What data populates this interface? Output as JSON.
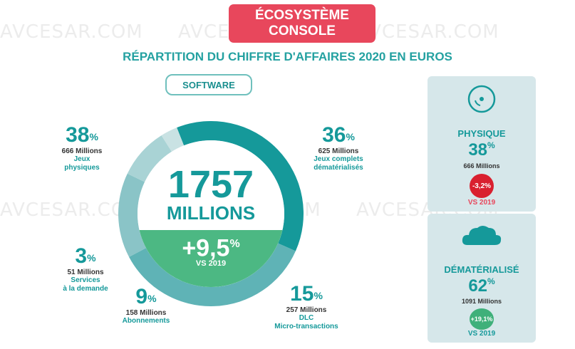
{
  "watermark": "AVCESAR.COM",
  "header": {
    "title_line1": "ÉCOSYSTÈME",
    "title_line2": "CONSOLE"
  },
  "subtitle": "RÉPARTITION DU CHIFFRE D'AFFAIRES 2020 EN EUROS",
  "tab": "SOFTWARE",
  "center": {
    "total": "1757",
    "unit": "MILLIONS",
    "growth": "+9,5",
    "growth_unit": "%",
    "vs": "VS 2019"
  },
  "chart_data": {
    "type": "pie",
    "title": "",
    "total": 1757,
    "unit": "Millions",
    "slices": [
      {
        "label": "Jeux physiques",
        "percent": 38,
        "value": 666
      },
      {
        "label": "Jeux complets dématérialisés",
        "percent": 36,
        "value": 625
      },
      {
        "label": "DLC Micro-transactions",
        "percent": 15,
        "value": 257
      },
      {
        "label": "Abonnements",
        "percent": 9,
        "value": 158
      },
      {
        "label": "Services à la demande",
        "percent": 3,
        "value": 51
      }
    ],
    "colors": [
      "#15999a",
      "#5fb3b6",
      "#8ac4c7",
      "#a9d3d5",
      "#c9e2e3"
    ]
  },
  "stats": {
    "jeux_physiques": {
      "pct": "38",
      "sym": "%",
      "millions": "666 Millions",
      "line1": "Jeux",
      "line2": "physiques"
    },
    "demat": {
      "pct": "36",
      "sym": "%",
      "millions": "625 Millions",
      "line1": "Jeux complets",
      "line2": "dématérialisés"
    },
    "services": {
      "pct": "3",
      "sym": "%",
      "millions": "51 Millions",
      "line1": "Services",
      "line2": "à la demande"
    },
    "abonnements": {
      "pct": "9",
      "sym": "%",
      "millions": "158 Millions",
      "line1": "Abonnements"
    },
    "dlc": {
      "pct": "15",
      "sym": "%",
      "millions": "257 Millions",
      "line1": "DLC",
      "line2": "Micro-transactions"
    }
  },
  "panel_physique": {
    "title": "PHYSIQUE",
    "pct": "38",
    "sym": "%",
    "millions": "666 Millions",
    "change": "-3,2%",
    "vs": "VS 2019",
    "change_color": "#d9202f",
    "icon": "disc-icon"
  },
  "panel_demat": {
    "title": "DÉMATÉRIALISÉ",
    "pct": "62",
    "sym": "%",
    "millions": "1091 Millions",
    "change": "+19,1%",
    "vs": "VS 2019",
    "change_color": "#3fb07a",
    "icon": "cloud-icon"
  }
}
